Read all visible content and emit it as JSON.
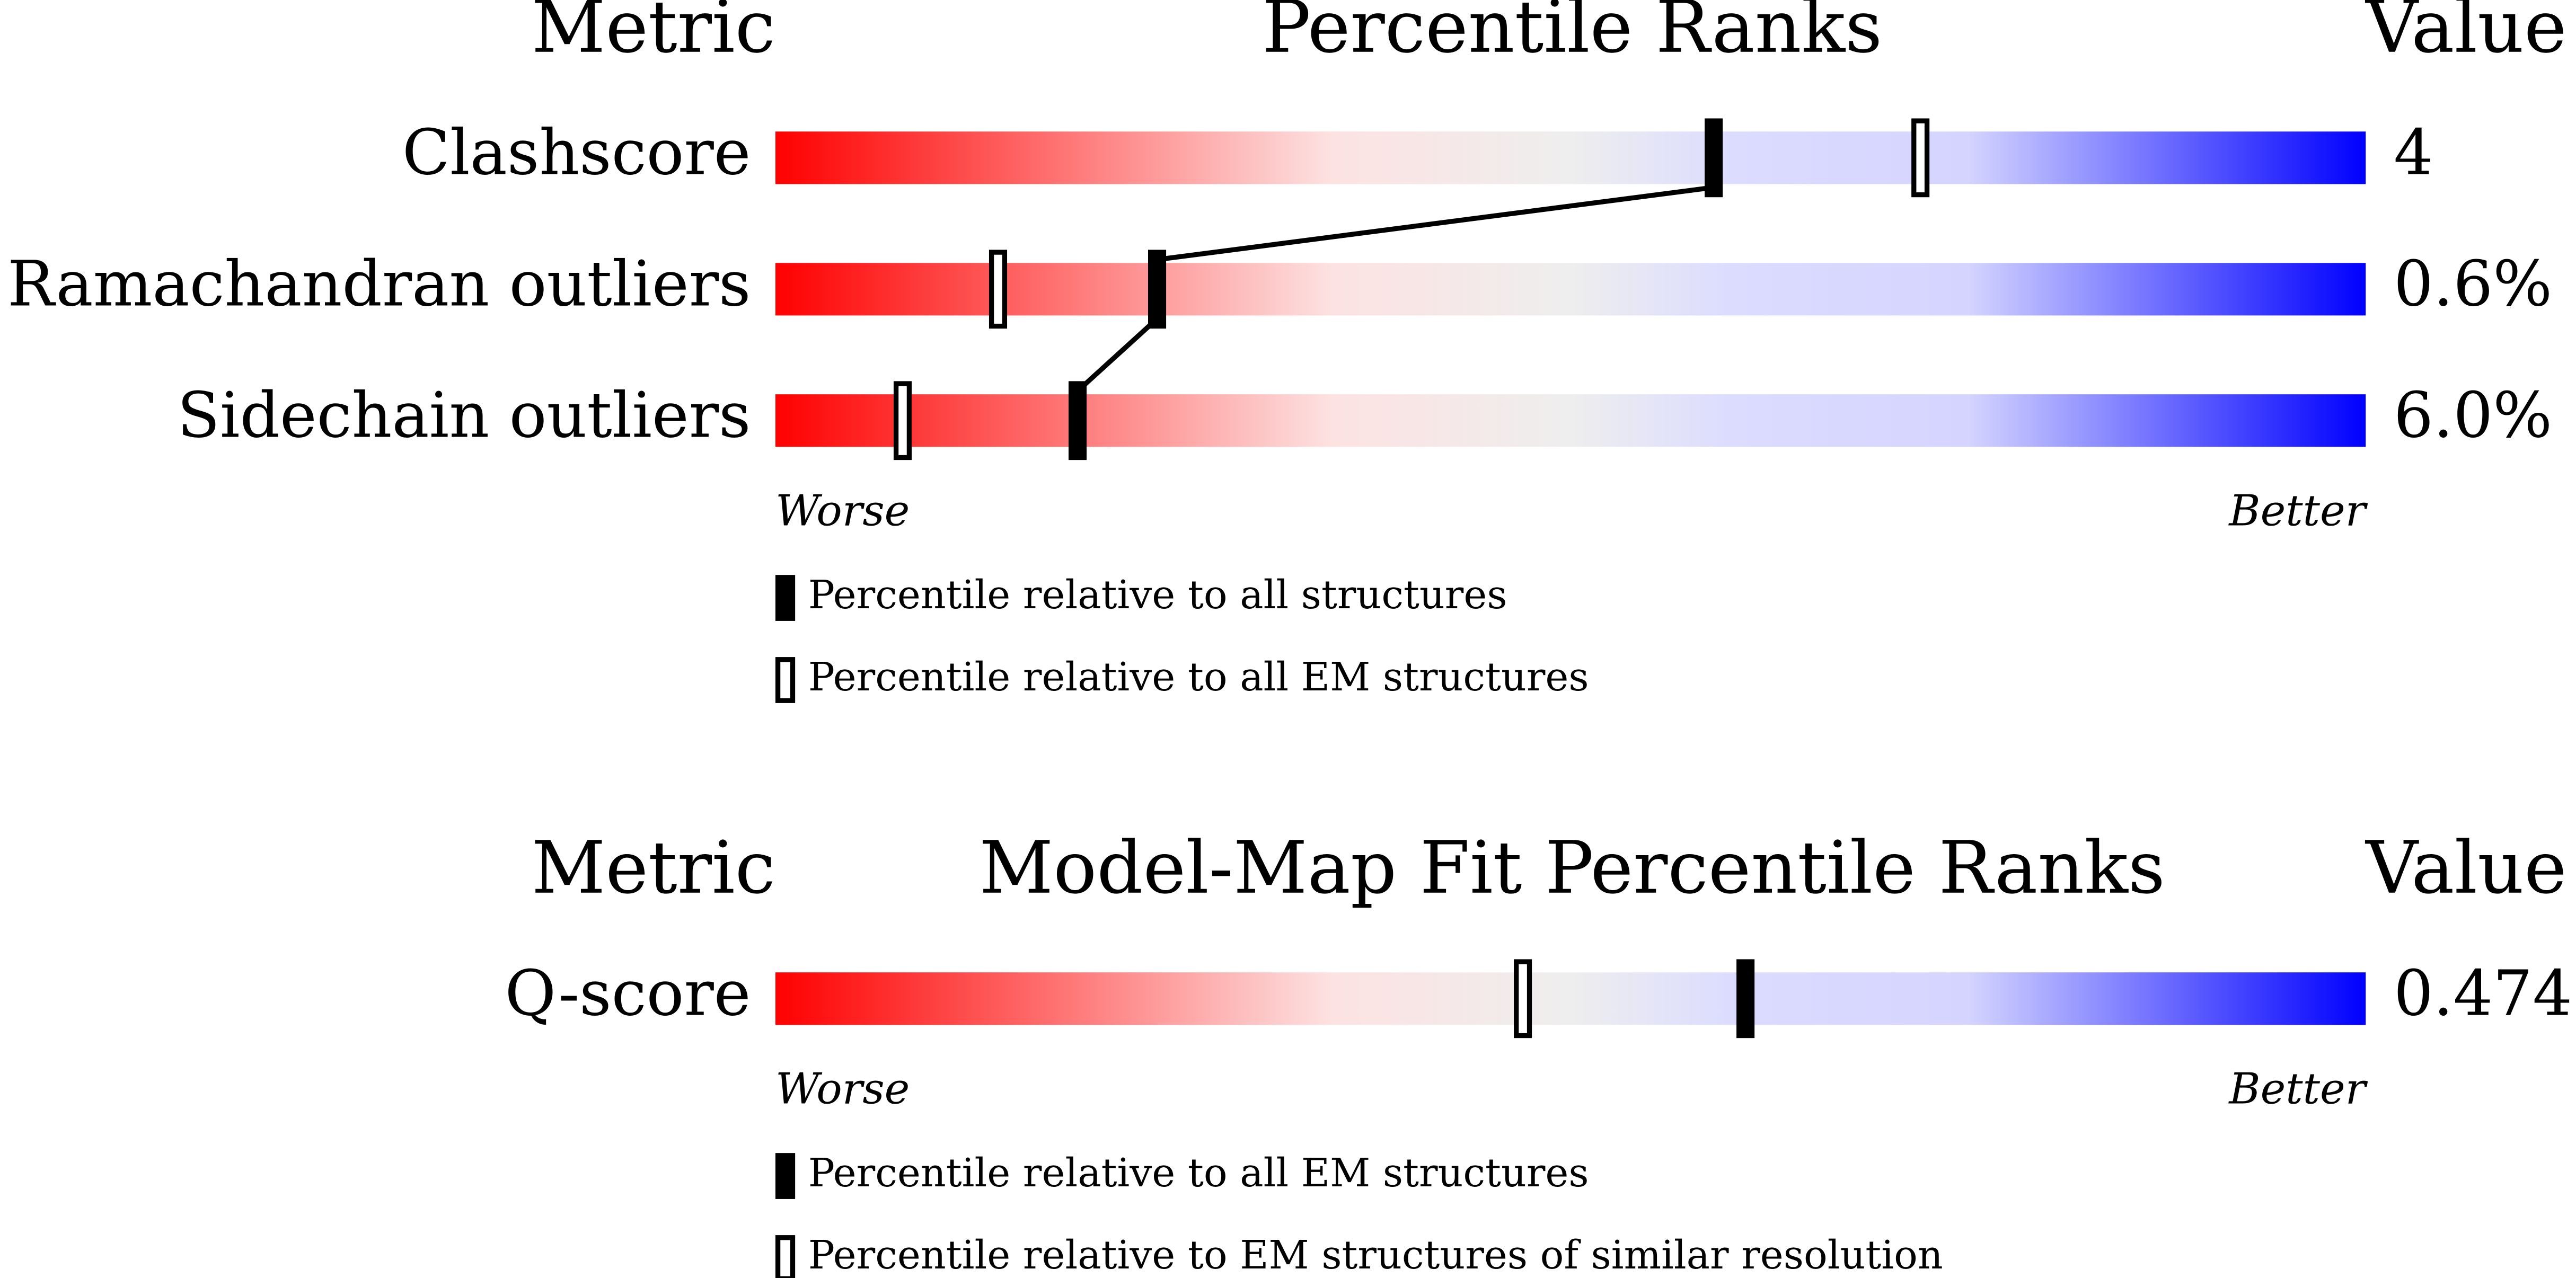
{
  "chart_data": [
    {
      "type": "percentile",
      "column_headers": [
        "Metric",
        "Value"
      ],
      "title": "Percentile Ranks",
      "categories": [
        "Clashscore",
        "Ramachandran outliers",
        "Sidechain outliers"
      ],
      "value_labels": [
        "4",
        "0.6%",
        "6.0%"
      ],
      "xlim": [
        0,
        100
      ],
      "axis_labels": [
        "Worse",
        "Better"
      ],
      "connect": true,
      "series": [
        {
          "name": "Percentile relative to all structures",
          "color": "#000000",
          "values": [
            59,
            24,
            19
          ]
        },
        {
          "name": "Percentile relative to all EM structures",
          "color": "#ffffff",
          "values": [
            72,
            14,
            8
          ]
        }
      ]
    },
    {
      "type": "percentile",
      "column_headers": [
        "Metric",
        "Value"
      ],
      "title": "Model-Map Fit Percentile Ranks",
      "categories": [
        "Q-score"
      ],
      "value_labels": [
        "0.474"
      ],
      "xlim": [
        0,
        100
      ],
      "axis_labels": [
        "Worse",
        "Better"
      ],
      "connect": true,
      "series": [
        {
          "name": "Percentile relative to all EM structures",
          "color": "#000000",
          "values": [
            61
          ]
        },
        {
          "name": "Percentile relative to EM structures of similar resolution",
          "color": "#ffffff",
          "values": [
            47
          ]
        }
      ]
    }
  ]
}
